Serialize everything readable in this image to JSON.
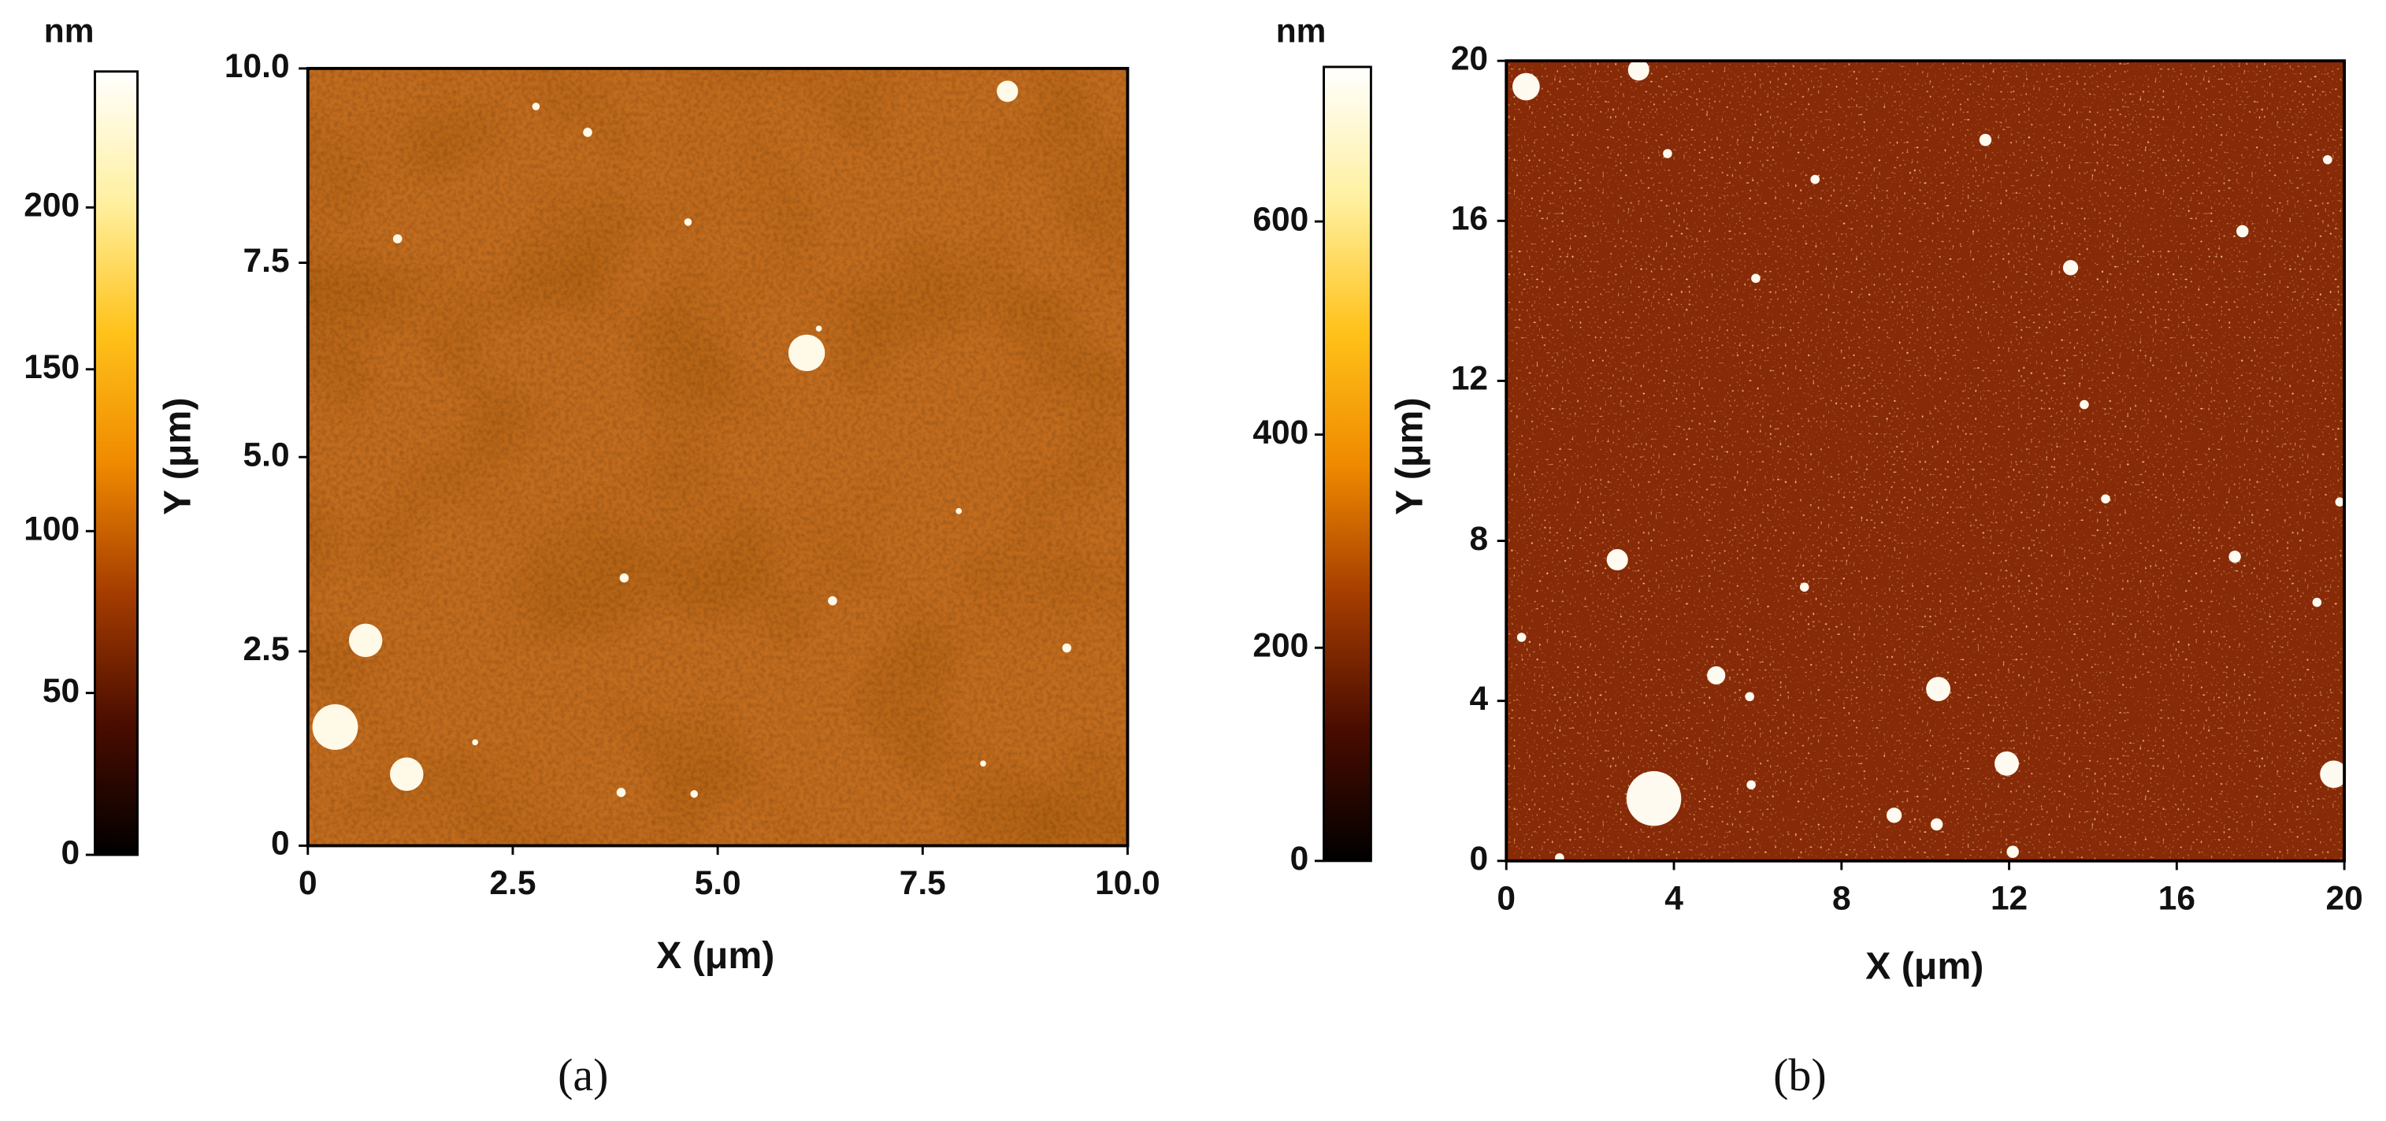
{
  "chart_data": [
    {
      "type": "afm-image",
      "x_label": "X (μm)",
      "y_label": "Y (μm)",
      "xlim": [
        0,
        10
      ],
      "ylim": [
        0,
        10
      ],
      "xticks": [
        0,
        2.5,
        {
          "value": 5,
          "label": "5.0"
        },
        7.5,
        {
          "value": 10,
          "label": "10.0"
        }
      ],
      "yticks": [
        0,
        2.5,
        {
          "value": 5,
          "label": "5.0"
        },
        7.5,
        {
          "value": 10,
          "label": "10.0"
        }
      ],
      "colorbar_label": "nm",
      "clim": [
        0,
        242
      ],
      "cticks": [
        0,
        50,
        100,
        150,
        200
      ],
      "colorscale": [
        "#000000",
        "#4a0c00",
        "#a43c00",
        "#f08a00",
        "#ffc21a",
        "#fff0a0",
        "#ffffff"
      ],
      "background": "#c26c1e",
      "caption": "(a)"
    },
    {
      "type": "afm-image",
      "x_label": "X (μm)",
      "y_label": "Y (μm)",
      "xlim": [
        0,
        20
      ],
      "ylim": [
        0,
        20
      ],
      "xticks": [
        0,
        4,
        8,
        12,
        16,
        20
      ],
      "yticks": [
        0,
        4,
        8,
        12,
        16,
        20
      ],
      "colorbar_label": "nm",
      "clim": [
        0,
        745
      ],
      "cticks": [
        0,
        200,
        400,
        600
      ],
      "colorscale": [
        "#000000",
        "#4a0c00",
        "#a43c00",
        "#f08a00",
        "#ffc21a",
        "#fff0a0",
        "#ffffff"
      ],
      "background": "#872a08",
      "caption": "(b)"
    }
  ]
}
